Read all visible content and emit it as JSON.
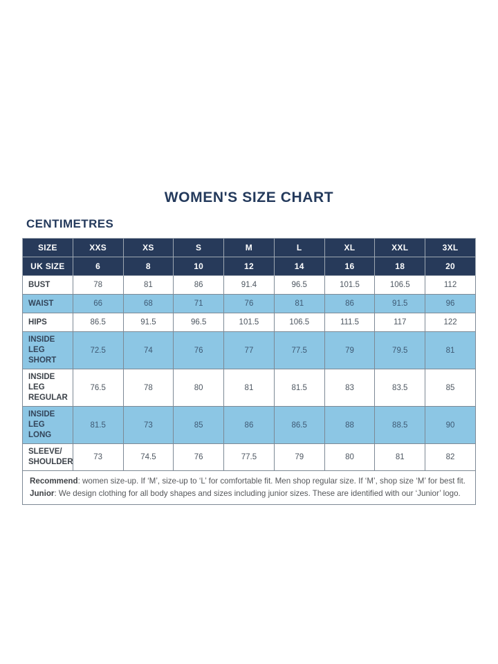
{
  "page": {
    "title": "WOMEN'S SIZE CHART",
    "subtitle": "CENTIMETRES"
  },
  "colors": {
    "header_navy": "#273a5a",
    "shaded_row_blue": "#8cc6e4",
    "title_navy": "#243a5c",
    "body_text": "#4d5660",
    "grid_line": "#7c8894"
  },
  "table": {
    "header_rows": [
      {
        "label": "SIZE",
        "values": [
          "XXS",
          "XS",
          "S",
          "M",
          "L",
          "XL",
          "XXL",
          "3XL"
        ]
      },
      {
        "label": "UK SIZE",
        "values": [
          "6",
          "8",
          "10",
          "12",
          "14",
          "16",
          "18",
          "20"
        ]
      }
    ],
    "rows": [
      {
        "label": "BUST",
        "shaded": false,
        "values": [
          "78",
          "81",
          "86",
          "91.4",
          "96.5",
          "101.5",
          "106.5",
          "112"
        ]
      },
      {
        "label": "WAIST",
        "shaded": true,
        "values": [
          "66",
          "68",
          "71",
          "76",
          "81",
          "86",
          "91.5",
          "96"
        ]
      },
      {
        "label": "HIPS",
        "shaded": false,
        "values": [
          "86.5",
          "91.5",
          "96.5",
          "101.5",
          "106.5",
          "111.5",
          "117",
          "122"
        ]
      },
      {
        "label": "INSIDE LEG\nSHORT",
        "shaded": true,
        "values": [
          "72.5",
          "74",
          "76",
          "77",
          "77.5",
          "79",
          "79.5",
          "81"
        ]
      },
      {
        "label": "INSIDE LEG\nREGULAR",
        "shaded": false,
        "values": [
          "76.5",
          "78",
          "80",
          "81",
          "81.5",
          "83",
          "83.5",
          "85"
        ]
      },
      {
        "label": "INSIDE LEG\nLONG",
        "shaded": true,
        "values": [
          "81.5",
          "73",
          "85",
          "86",
          "86.5",
          "88",
          "88.5",
          "90"
        ]
      },
      {
        "label": "SLEEVE/\nSHOULDER",
        "shaded": false,
        "values": [
          "73",
          "74.5",
          "76",
          "77.5",
          "79",
          "80",
          "81",
          "82"
        ]
      }
    ],
    "notes": [
      {
        "lead": "Recommend",
        "text": ": women size-up. If ‘M’, size-up to ‘L’ for comfortable fit. Men shop regular size. If ‘M’, shop size ‘M’ for best fit."
      },
      {
        "lead": "Junior",
        "text": ": We design clothing for all body shapes and sizes including junior sizes. These are identified with our ‘Junior’ logo."
      }
    ]
  }
}
